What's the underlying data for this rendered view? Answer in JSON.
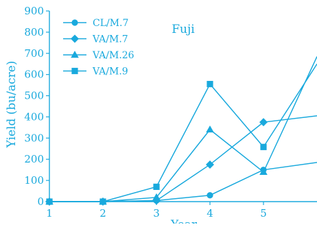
{
  "colors": {
    "accent": "#19a9dd",
    "background": "#ffffff"
  },
  "chart_data": {
    "type": "line",
    "title": "Fuji",
    "xlabel": "Year",
    "ylabel": "Yield (bu/acre)",
    "x": [
      1,
      2,
      3,
      4,
      5,
      6
    ],
    "xlim": [
      1,
      6
    ],
    "ylim": [
      0,
      900
    ],
    "x_ticks": [
      "1",
      "2",
      "3",
      "4",
      "5"
    ],
    "y_ticks": [
      "0",
      "100",
      "200",
      "300",
      "400",
      "500",
      "600",
      "700",
      "800",
      "900"
    ],
    "grid": false,
    "legend_position": "top-left",
    "series": [
      {
        "name": "CL/M.7",
        "marker": "circle",
        "values": [
          0,
          0,
          5,
          30,
          150,
          185
        ]
      },
      {
        "name": "VA/M.7",
        "marker": "diamond",
        "values": [
          0,
          0,
          5,
          175,
          375,
          405
        ]
      },
      {
        "name": "VA/M.26",
        "marker": "triangle",
        "values": [
          0,
          0,
          20,
          340,
          140,
          685
        ]
      },
      {
        "name": "VA/M.9",
        "marker": "square",
        "values": [
          0,
          0,
          70,
          555,
          258,
          650
        ]
      }
    ]
  }
}
